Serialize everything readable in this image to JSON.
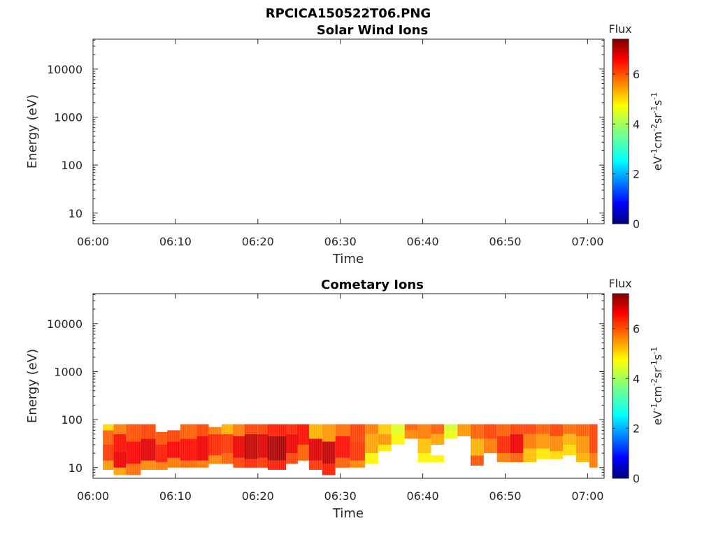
{
  "figure": {
    "filename": "RPCICA150522T06.PNG"
  },
  "chart_data": [
    {
      "type": "heatmap",
      "title": "Solar Wind Ions",
      "xlabel": "Time",
      "ylabel": "Energy (eV)",
      "x_ticks": [
        "06:00",
        "06:10",
        "06:20",
        "06:30",
        "06:40",
        "06:50",
        "07:00"
      ],
      "x_range_minutes": [
        0,
        62
      ],
      "y_scale": "log",
      "y_ticks": [
        10,
        100,
        1000,
        10000
      ],
      "y_tick_labels": [
        "10",
        "100",
        "1000",
        "10000"
      ],
      "y_range": [
        6,
        42000
      ],
      "colorbar": {
        "label": "Flux",
        "units": "eV-1cm-2sr-1s-1",
        "ticks": [
          "0",
          "2",
          "4",
          "6"
        ],
        "range": [
          0,
          7.4
        ],
        "colormap": "jet"
      },
      "cells": []
    },
    {
      "type": "heatmap",
      "title": "Cometary Ions",
      "xlabel": "Time",
      "ylabel": "Energy (eV)",
      "x_ticks": [
        "06:00",
        "06:10",
        "06:20",
        "06:30",
        "06:40",
        "06:50",
        "07:00"
      ],
      "x_range_minutes": [
        0,
        62
      ],
      "y_scale": "log",
      "y_ticks": [
        10,
        100,
        1000,
        10000
      ],
      "y_tick_labels": [
        "10",
        "100",
        "1000",
        "10000"
      ],
      "y_range": [
        6,
        42000
      ],
      "colorbar": {
        "label": "Flux",
        "units": "eV-1cm-2sr-1s-1",
        "ticks": [
          "0",
          "2",
          "4",
          "6"
        ],
        "range": [
          0,
          7.4
        ],
        "colormap": "jet"
      },
      "columns": [
        {
          "t0": 1.2,
          "t1": 2.5,
          "bands": [
            [
              9,
              14,
              5.4
            ],
            [
              14,
              30,
              6.1
            ],
            [
              30,
              60,
              5.8
            ],
            [
              60,
              80,
              4.9
            ]
          ]
        },
        {
          "t0": 2.5,
          "t1": 4.0,
          "bands": [
            [
              7,
              10,
              5.3
            ],
            [
              10,
              22,
              6.6
            ],
            [
              22,
              50,
              6.4
            ],
            [
              50,
              80,
              5.6
            ]
          ]
        },
        {
          "t0": 4.0,
          "t1": 5.8,
          "bands": [
            [
              7,
              12,
              5.7
            ],
            [
              12,
              35,
              6.5
            ],
            [
              35,
              80,
              5.9
            ]
          ]
        },
        {
          "t0": 5.8,
          "t1": 7.6,
          "bands": [
            [
              9,
              14,
              5.5
            ],
            [
              14,
              40,
              6.7
            ],
            [
              40,
              80,
              6.0
            ]
          ]
        },
        {
          "t0": 7.6,
          "t1": 9.0,
          "bands": [
            [
              9,
              13,
              5.6
            ],
            [
              13,
              30,
              6.3
            ],
            [
              30,
              55,
              5.9
            ]
          ]
        },
        {
          "t0": 9.0,
          "t1": 10.6,
          "bands": [
            [
              10,
              16,
              5.6
            ],
            [
              16,
              35,
              6.5
            ],
            [
              35,
              60,
              6.0
            ]
          ]
        },
        {
          "t0": 10.6,
          "t1": 12.6,
          "bands": [
            [
              10,
              14,
              5.7
            ],
            [
              14,
              40,
              6.4
            ],
            [
              40,
              80,
              5.8
            ]
          ]
        },
        {
          "t0": 12.6,
          "t1": 14.0,
          "bands": [
            [
              10,
              14,
              5.6
            ],
            [
              14,
              45,
              6.6
            ],
            [
              45,
              80,
              6.0
            ]
          ]
        },
        {
          "t0": 14.0,
          "t1": 15.6,
          "bands": [
            [
              12,
              18,
              5.5
            ],
            [
              18,
              50,
              6.2
            ],
            [
              50,
              70,
              5.6
            ]
          ]
        },
        {
          "t0": 15.6,
          "t1": 17.0,
          "bands": [
            [
              12,
              20,
              5.8
            ],
            [
              20,
              50,
              6.1
            ],
            [
              50,
              80,
              5.2
            ]
          ]
        },
        {
          "t0": 17.0,
          "t1": 18.4,
          "bands": [
            [
              10,
              16,
              6.0
            ],
            [
              16,
              45,
              6.6
            ],
            [
              45,
              80,
              5.6
            ]
          ]
        },
        {
          "t0": 18.4,
          "t1": 20.0,
          "bands": [
            [
              10,
              15,
              6.2
            ],
            [
              15,
              50,
              6.9
            ],
            [
              50,
              80,
              6.0
            ]
          ]
        },
        {
          "t0": 20.0,
          "t1": 21.2,
          "bands": [
            [
              10,
              16,
              6.1
            ],
            [
              16,
              50,
              6.7
            ],
            [
              50,
              80,
              6.0
            ]
          ]
        },
        {
          "t0": 21.2,
          "t1": 23.4,
          "bands": [
            [
              9,
              14,
              6.3
            ],
            [
              14,
              45,
              7.1
            ],
            [
              45,
              80,
              6.3
            ]
          ]
        },
        {
          "t0": 23.4,
          "t1": 24.8,
          "bands": [
            [
              12,
              20,
              6.0
            ],
            [
              20,
              50,
              6.6
            ],
            [
              50,
              80,
              6.2
            ]
          ]
        },
        {
          "t0": 24.8,
          "t1": 26.2,
          "bands": [
            [
              14,
              30,
              5.8
            ],
            [
              30,
              80,
              6.4
            ]
          ]
        },
        {
          "t0": 26.2,
          "t1": 27.8,
          "bands": [
            [
              9,
              14,
              6.1
            ],
            [
              14,
              40,
              6.7
            ],
            [
              40,
              80,
              5.2
            ]
          ]
        },
        {
          "t0": 27.8,
          "t1": 29.4,
          "bands": [
            [
              7,
              12,
              6.3
            ],
            [
              12,
              35,
              6.9
            ],
            [
              35,
              80,
              5.4
            ]
          ]
        },
        {
          "t0": 29.4,
          "t1": 31.2,
          "bands": [
            [
              10,
              16,
              5.8
            ],
            [
              16,
              45,
              6.4
            ],
            [
              45,
              80,
              5.7
            ]
          ]
        },
        {
          "t0": 31.2,
          "t1": 33.0,
          "bands": [
            [
              10,
              14,
              5.5
            ],
            [
              14,
              35,
              6.1
            ],
            [
              35,
              80,
              6.0
            ]
          ]
        },
        {
          "t0": 33.0,
          "t1": 34.6,
          "bands": [
            [
              12,
              20,
              4.7
            ],
            [
              20,
              50,
              5.3
            ],
            [
              50,
              80,
              5.6
            ]
          ]
        },
        {
          "t0": 34.6,
          "t1": 36.2,
          "bands": [
            [
              22,
              30,
              4.8
            ],
            [
              30,
              50,
              5.4
            ],
            [
              50,
              80,
              5.0
            ]
          ]
        },
        {
          "t0": 36.2,
          "t1": 37.8,
          "bands": [
            [
              30,
              50,
              4.7
            ],
            [
              50,
              80,
              4.4
            ]
          ]
        },
        {
          "t0": 37.8,
          "t1": 39.4,
          "bands": [
            [
              40,
              60,
              5.5
            ],
            [
              60,
              80,
              5.8
            ]
          ]
        },
        {
          "t0": 39.4,
          "t1": 41.0,
          "bands": [
            [
              13,
              20,
              4.7
            ],
            [
              20,
              40,
              5.1
            ],
            [
              40,
              80,
              5.6
            ]
          ]
        },
        {
          "t0": 41.0,
          "t1": 42.6,
          "bands": [
            [
              13,
              18,
              4.7
            ],
            [
              30,
              50,
              5.3
            ],
            [
              50,
              80,
              5.8
            ]
          ]
        },
        {
          "t0": 42.6,
          "t1": 44.2,
          "bands": [
            [
              40,
              60,
              4.5
            ],
            [
              60,
              80,
              4.3
            ]
          ]
        },
        {
          "t0": 44.2,
          "t1": 45.8,
          "bands": [
            [
              45,
              80,
              5.4
            ]
          ]
        },
        {
          "t0": 45.8,
          "t1": 47.4,
          "bands": [
            [
              11,
              18,
              5.9
            ],
            [
              18,
              40,
              5.2
            ],
            [
              40,
              80,
              5.8
            ]
          ]
        },
        {
          "t0": 47.4,
          "t1": 49.0,
          "bands": [
            [
              20,
              40,
              5.6
            ],
            [
              40,
              80,
              6.0
            ]
          ]
        },
        {
          "t0": 49.0,
          "t1": 50.6,
          "bands": [
            [
              13,
              20,
              5.6
            ],
            [
              20,
              45,
              6.2
            ],
            [
              45,
              80,
              5.8
            ]
          ]
        },
        {
          "t0": 50.6,
          "t1": 52.2,
          "bands": [
            [
              13,
              20,
              5.8
            ],
            [
              20,
              50,
              6.6
            ],
            [
              50,
              80,
              6.0
            ]
          ]
        },
        {
          "t0": 52.2,
          "t1": 53.8,
          "bands": [
            [
              13,
              25,
              5.1
            ],
            [
              25,
              50,
              5.6
            ],
            [
              50,
              80,
              6.0
            ]
          ]
        },
        {
          "t0": 53.8,
          "t1": 55.4,
          "bands": [
            [
              15,
              25,
              4.8
            ],
            [
              25,
              50,
              5.4
            ],
            [
              50,
              80,
              5.8
            ]
          ]
        },
        {
          "t0": 55.4,
          "t1": 57.0,
          "bands": [
            [
              15,
              22,
              4.9
            ],
            [
              22,
              45,
              5.5
            ],
            [
              45,
              80,
              6.0
            ]
          ]
        },
        {
          "t0": 57.0,
          "t1": 58.6,
          "bands": [
            [
              18,
              30,
              4.9
            ],
            [
              30,
              50,
              5.2
            ],
            [
              50,
              80,
              5.7
            ]
          ]
        },
        {
          "t0": 58.6,
          "t1": 60.2,
          "bands": [
            [
              13,
              20,
              5.2
            ],
            [
              20,
              45,
              5.4
            ],
            [
              45,
              80,
              5.8
            ]
          ]
        },
        {
          "t0": 60.2,
          "t1": 61.2,
          "bands": [
            [
              10,
              20,
              5.6
            ],
            [
              20,
              80,
              6.0
            ]
          ]
        }
      ]
    }
  ]
}
